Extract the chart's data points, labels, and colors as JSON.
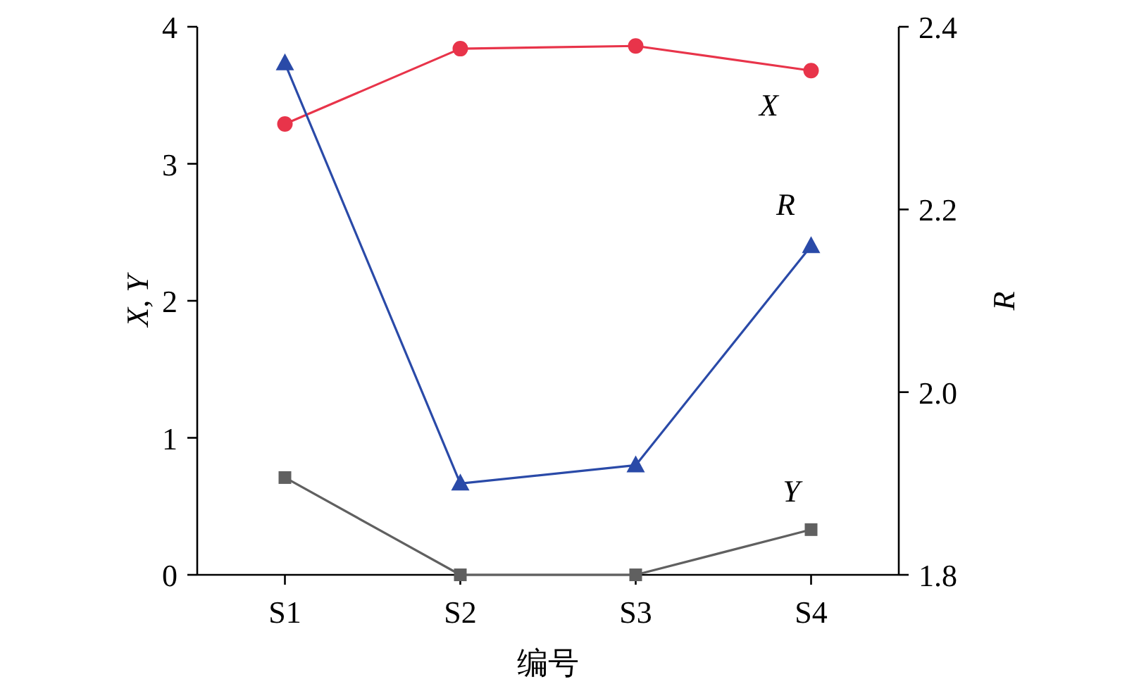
{
  "chart_data": {
    "type": "line",
    "categories": [
      "S1",
      "S2",
      "S3",
      "S4"
    ],
    "xlabel": "编号",
    "ylabel": "X, Y",
    "y2label": "R",
    "ylim": [
      0,
      4
    ],
    "yticks": [
      0,
      1,
      2,
      3,
      4
    ],
    "y2lim": [
      1.8,
      2.4
    ],
    "y2ticks": [
      1.8,
      {
        "value": 2,
        "label": "2.0"
      },
      2.2,
      2.4
    ],
    "series": [
      {
        "name": "X",
        "color": "#e8344a",
        "marker": "circle",
        "values": [
          3.29,
          3.84,
          3.86,
          3.68
        ]
      },
      {
        "name": "R",
        "color": "#2a4aa8",
        "marker": "triangle",
        "axis": "y2",
        "values": [
          2.36,
          1.9,
          1.92,
          2.16
        ]
      },
      {
        "name": "Y",
        "color": "#606060",
        "marker": "square",
        "values": [
          0.71,
          0,
          0,
          0.33
        ]
      }
    ]
  }
}
